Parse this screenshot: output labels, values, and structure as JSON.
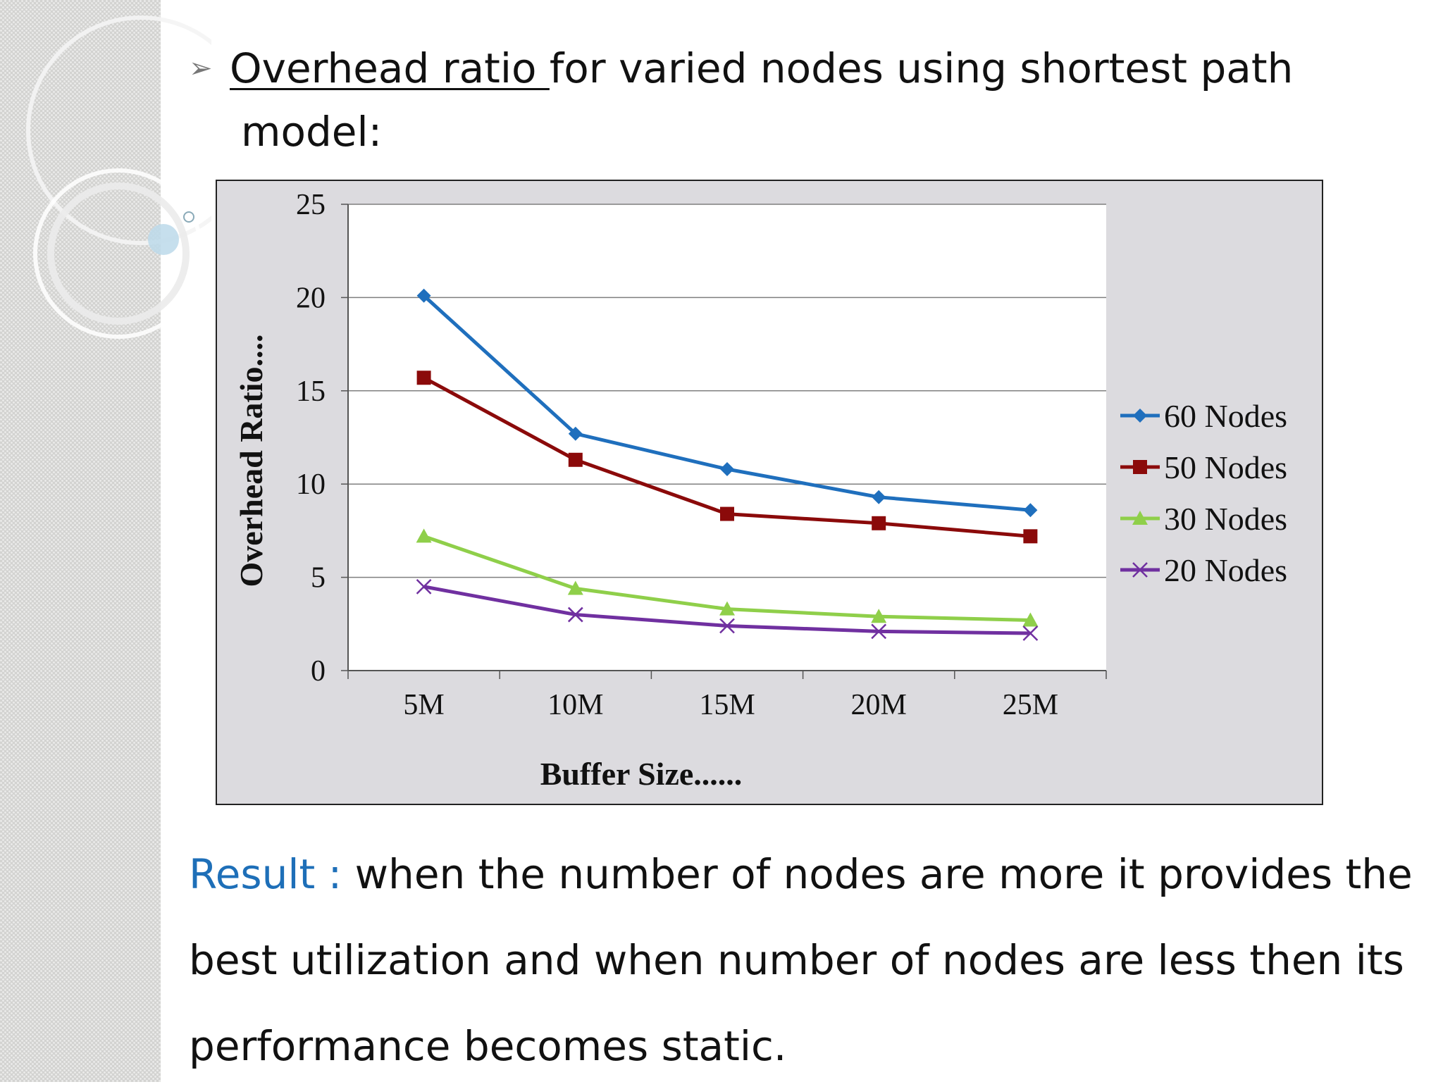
{
  "heading": {
    "bullet": "➢",
    "underlined": "Overhead ratio ",
    "rest": "for varied nodes using shortest path",
    "line2": "model:"
  },
  "chart_data": {
    "type": "line",
    "categories": [
      "5M",
      "10M",
      "15M",
      "20M",
      "25M"
    ],
    "series": [
      {
        "name": "60 Nodes",
        "values": [
          20.1,
          12.7,
          10.8,
          9.3,
          8.6
        ],
        "color": "#1f6fbd",
        "marker": "diamond"
      },
      {
        "name": "50 Nodes",
        "values": [
          15.7,
          11.3,
          8.4,
          7.9,
          7.2
        ],
        "color": "#8b0a0a",
        "marker": "square"
      },
      {
        "name": "30 Nodes",
        "values": [
          7.2,
          4.4,
          3.3,
          2.9,
          2.7
        ],
        "color": "#8fcf4a",
        "marker": "triangle"
      },
      {
        "name": "20 Nodes",
        "values": [
          4.5,
          3.0,
          2.4,
          2.1,
          2.0
        ],
        "color": "#7030a0",
        "marker": "x"
      }
    ],
    "xlabel": "Buffer Size......",
    "ylabel": "Overhead Ratio....",
    "yticks": [
      "0",
      "5",
      "10",
      "15",
      "20",
      "25"
    ],
    "ylim": [
      0,
      25
    ],
    "grid": true,
    "legend": "right",
    "plot_background": "#ffffff",
    "chart_background": "#dcdbdf"
  },
  "result": {
    "label": "Result : ",
    "line1": "when the number of nodes are more it provides the",
    "line2": "best utilization and when number of nodes are less then its",
    "line3": "performance becomes static."
  }
}
